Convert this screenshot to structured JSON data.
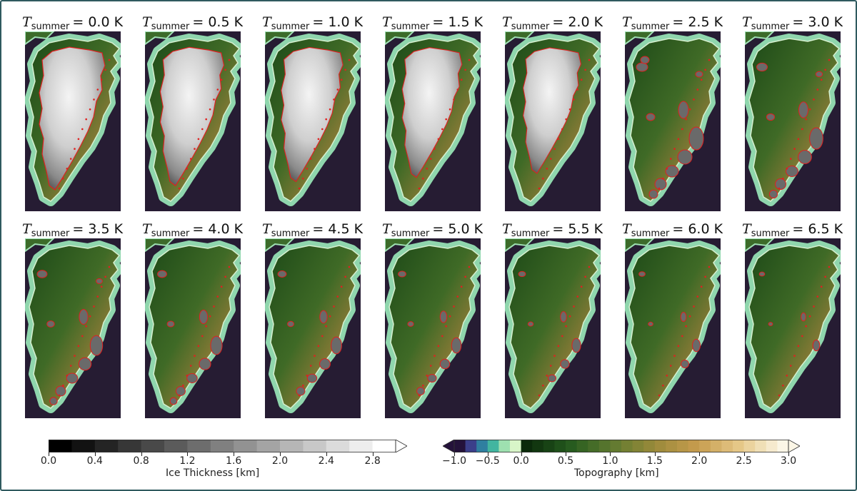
{
  "figure": {
    "title_prefix": "T",
    "title_subscript": "summer",
    "panels": [
      {
        "label": "= 0.0 K",
        "warming": 0.0
      },
      {
        "label": "= 0.5 K",
        "warming": 0.5
      },
      {
        "label": "= 1.0 K",
        "warming": 1.0
      },
      {
        "label": "= 1.5 K",
        "warming": 1.5
      },
      {
        "label": "= 2.0 K",
        "warming": 2.0
      },
      {
        "label": "= 2.5 K",
        "warming": 2.5
      },
      {
        "label": "= 3.0 K",
        "warming": 3.0
      },
      {
        "label": "= 3.5 K",
        "warming": 3.5
      },
      {
        "label": "= 4.0 K",
        "warming": 4.0
      },
      {
        "label": "= 4.5 K",
        "warming": 4.5
      },
      {
        "label": "= 5.0 K",
        "warming": 5.0
      },
      {
        "label": "= 5.5 K",
        "warming": 5.5
      },
      {
        "label": "= 6.0 K",
        "warming": 6.0
      },
      {
        "label": "= 6.5 K",
        "warming": 6.5
      }
    ]
  },
  "colorbars": {
    "ice": {
      "label": "Ice Thickness [km]",
      "ticks": [
        "0.0",
        "0.4",
        "0.8",
        "1.2",
        "1.6",
        "2.0",
        "2.4",
        "2.8"
      ],
      "range": [
        0,
        3.0
      ],
      "extend": "max",
      "colors": [
        "#000000",
        "#ffffff"
      ]
    },
    "topo": {
      "label": "Topography [km]",
      "ticks": [
        "−1.0",
        "−0.5",
        "0.0",
        "0.5",
        "1.0",
        "1.5",
        "2.0",
        "2.5",
        "3.0"
      ],
      "range": [
        -1.0,
        3.0
      ],
      "extend": "both",
      "ocean_colors": [
        "#24123a",
        "#3b3f8a",
        "#2f7fa0",
        "#42b5a0",
        "#9ee0b0",
        "#d8f5c8"
      ],
      "land_colors": [
        "#0b2a0b",
        "#245a1e",
        "#5f7a30",
        "#9a8a3a",
        "#c79c4e",
        "#e6c98a",
        "#fbf6e6"
      ]
    }
  },
  "colors": {
    "ocean": "#261c33",
    "margin_outline": "#e02020",
    "frame_border": "#2f5a5f"
  }
}
